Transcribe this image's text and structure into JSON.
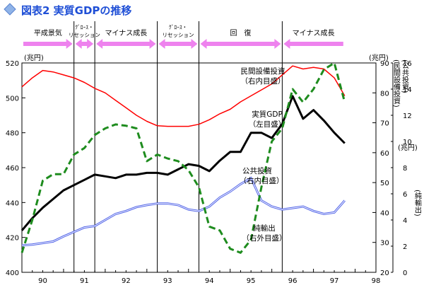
{
  "title": "図表2 実質GDPの推移",
  "colors": {
    "title": "#1f4fd6",
    "title_diamond": "#8fb3e8",
    "period_arrow": "#ee82ee",
    "real_gdp": "#000000",
    "equipment_investment": "#ff0000",
    "public_investment": "#4f62e8",
    "net_exports": "#1e8c1e"
  },
  "chart_data": {
    "type": "line",
    "x_ticks": [
      "90",
      "91",
      "92",
      "93",
      "94",
      "95",
      "96",
      "97",
      "98"
    ],
    "periods": [
      {
        "label": "平成景気",
        "start": 1990.0,
        "end": 1991.25
      },
      {
        "label": "ｸﾞﾛｰｽ・リセッション",
        "start": 1991.25,
        "end": 1991.75
      },
      {
        "label": "マイナス成長",
        "start": 1991.75,
        "end": 1993.25
      },
      {
        "label": "ｸﾞﾛｰｽ・リセッション",
        "start": 1993.25,
        "end": 1994.25
      },
      {
        "label": "回　復",
        "start": 1994.25,
        "end": 1996.25
      },
      {
        "label": "マイナス成長",
        "start": 1996.25,
        "end": 1997.75
      }
    ],
    "period_boundaries": [
      1991.25,
      1991.75,
      1993.25,
      1994.25,
      1996.25
    ],
    "axes": {
      "left": {
        "unit": "(兆円)",
        "min": 400,
        "max": 520,
        "ticks": [
          400,
          420,
          440,
          460,
          480,
          500,
          520
        ]
      },
      "right_inner": {
        "unit": "(兆円)",
        "title": "(公共投資)(民間設備投資)",
        "min": 20,
        "max": 90,
        "ticks": [
          20,
          30,
          40,
          50,
          60,
          70,
          80,
          90
        ]
      },
      "right_outer": {
        "unit": "(兆円)",
        "title": "(純輸出)",
        "min": 0,
        "max": 16,
        "ticks": [
          0,
          2,
          4,
          6,
          8,
          10,
          12,
          14,
          16
        ]
      }
    },
    "series": [
      {
        "name": "民間設備投資(右内目盛)",
        "axis": "right_inner",
        "style": "solid",
        "x": [
          1990.0,
          1990.25,
          1990.5,
          1990.75,
          1991.0,
          1991.25,
          1991.5,
          1991.75,
          1992.0,
          1992.25,
          1992.5,
          1992.75,
          1993.0,
          1993.25,
          1993.5,
          1993.75,
          1994.0,
          1994.25,
          1994.5,
          1994.75,
          1995.0,
          1995.25,
          1995.5,
          1995.75,
          1996.0,
          1996.25,
          1996.5,
          1996.75,
          1997.0,
          1997.25,
          1997.5,
          1997.75
        ],
        "y": [
          82,
          85,
          87.5,
          87,
          86,
          85,
          83.5,
          81.5,
          80,
          77.5,
          75,
          72.5,
          70.5,
          69,
          68.8,
          68.8,
          68.8,
          69.5,
          71,
          73,
          74.5,
          77,
          79,
          81,
          83,
          86,
          89,
          88,
          88.5,
          88,
          85,
          79
        ]
      },
      {
        "name": "実質GDP(左目盛)",
        "axis": "left",
        "style": "solid",
        "x": [
          1990.0,
          1990.25,
          1990.5,
          1990.75,
          1991.0,
          1991.25,
          1991.5,
          1991.75,
          1992.0,
          1992.25,
          1992.5,
          1992.75,
          1993.0,
          1993.25,
          1993.5,
          1993.75,
          1994.0,
          1994.25,
          1994.5,
          1994.75,
          1995.0,
          1995.25,
          1995.5,
          1995.75,
          1996.0,
          1996.25,
          1996.5,
          1996.75,
          1997.0,
          1997.25,
          1997.5,
          1997.75
        ],
        "y": [
          424,
          431,
          437,
          442,
          447,
          450,
          453,
          456,
          455,
          454,
          456,
          456,
          457,
          457,
          456,
          459,
          462,
          461,
          458,
          464,
          469,
          469,
          480,
          480,
          477,
          485,
          501,
          488,
          493,
          487,
          480,
          474
        ]
      },
      {
        "name": "公共投資(右内目盛)",
        "axis": "right_inner",
        "style": "double",
        "x": [
          1990.0,
          1990.25,
          1990.5,
          1990.75,
          1991.0,
          1991.25,
          1991.5,
          1991.75,
          1992.0,
          1992.25,
          1992.5,
          1992.75,
          1993.0,
          1993.25,
          1993.5,
          1993.75,
          1994.0,
          1994.25,
          1994.5,
          1994.75,
          1995.0,
          1995.25,
          1995.5,
          1995.75,
          1996.0,
          1996.25,
          1996.5,
          1996.75,
          1997.0,
          1997.25,
          1997.5,
          1997.75
        ],
        "y": [
          29,
          29.3,
          29.8,
          30.3,
          32,
          33.5,
          35,
          35.5,
          37.5,
          39.5,
          40.5,
          41.8,
          42.5,
          43,
          43,
          42.5,
          41,
          40.5,
          42,
          45,
          47,
          49.5,
          51.5,
          44,
          42,
          41,
          41.5,
          42,
          40.5,
          39.5,
          40,
          44
        ]
      },
      {
        "name": "純輸出(右外目盛)",
        "axis": "right_outer",
        "style": "dashed",
        "x": [
          1990.0,
          1990.25,
          1990.5,
          1990.75,
          1991.0,
          1991.25,
          1991.5,
          1991.75,
          1992.0,
          1992.25,
          1992.5,
          1992.75,
          1993.0,
          1993.25,
          1993.5,
          1993.75,
          1994.0,
          1994.25,
          1994.5,
          1994.75,
          1995.0,
          1995.25,
          1995.5,
          1995.75,
          1996.0,
          1996.25,
          1996.5,
          1996.75,
          1997.0,
          1997.25,
          1997.5,
          1997.75
        ],
        "y": [
          1.5,
          4,
          7,
          7.5,
          7.5,
          9,
          9.5,
          10.5,
          11,
          11.3,
          11.2,
          11,
          8.5,
          9,
          8.7,
          8.5,
          7.8,
          6.5,
          3.5,
          3.2,
          1.8,
          1.5,
          2.5,
          6.5,
          10,
          11,
          14,
          13,
          14,
          15.5,
          16,
          13
        ]
      }
    ],
    "annotations": [
      {
        "id": "equipment",
        "lines": [
          "民間設備投資",
          "（右内目盛）"
        ]
      },
      {
        "id": "gdp",
        "lines": [
          "実質GDP",
          "（左目盛）"
        ]
      },
      {
        "id": "public",
        "lines": [
          "公共投資",
          "（右内目盛）"
        ]
      },
      {
        "id": "net_exports",
        "lines": [
          "純輸出",
          "（右外目盛）"
        ]
      }
    ]
  }
}
